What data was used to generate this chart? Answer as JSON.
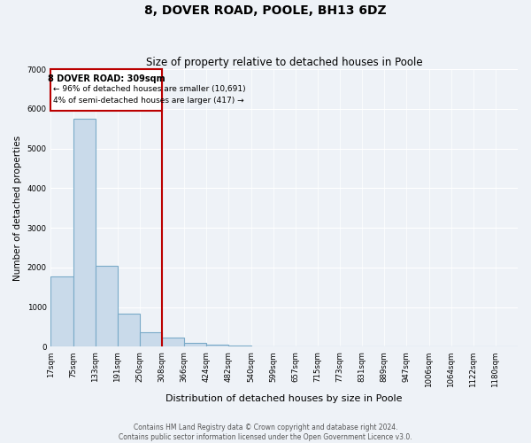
{
  "title": "8, DOVER ROAD, POOLE, BH13 6DZ",
  "subtitle": "Size of property relative to detached houses in Poole",
  "xlabel": "Distribution of detached houses by size in Poole",
  "ylabel": "Number of detached properties",
  "bar_labels": [
    "17sqm",
    "75sqm",
    "133sqm",
    "191sqm",
    "250sqm",
    "308sqm",
    "366sqm",
    "424sqm",
    "482sqm",
    "540sqm",
    "599sqm",
    "657sqm",
    "715sqm",
    "773sqm",
    "831sqm",
    "889sqm",
    "947sqm",
    "1006sqm",
    "1064sqm",
    "1122sqm",
    "1180sqm"
  ],
  "bar_values": [
    1780,
    5760,
    2050,
    840,
    370,
    230,
    110,
    60,
    30,
    20,
    0,
    0,
    0,
    0,
    0,
    0,
    0,
    0,
    0,
    0,
    0
  ],
  "bar_color": "#c9daea",
  "bar_edge_color": "#7aaac8",
  "ylim": [
    0,
    7000
  ],
  "yticks": [
    0,
    1000,
    2000,
    3000,
    4000,
    5000,
    6000,
    7000
  ],
  "vline_x_index": 5,
  "vline_color": "#bb0000",
  "box_text_line1": "8 DOVER ROAD: 309sqm",
  "box_text_line2": "← 96% of detached houses are smaller (10,691)",
  "box_text_line3": "4% of semi-detached houses are larger (417) →",
  "box_edge_color": "#bb0000",
  "box_facecolor": "white",
  "footer_line1": "Contains HM Land Registry data © Crown copyright and database right 2024.",
  "footer_line2": "Contains public sector information licensed under the Open Government Licence v3.0.",
  "background_color": "#eef2f7",
  "plot_background_color": "#eef2f7",
  "grid_color": "white",
  "title_fontsize": 10,
  "subtitle_fontsize": 8.5
}
